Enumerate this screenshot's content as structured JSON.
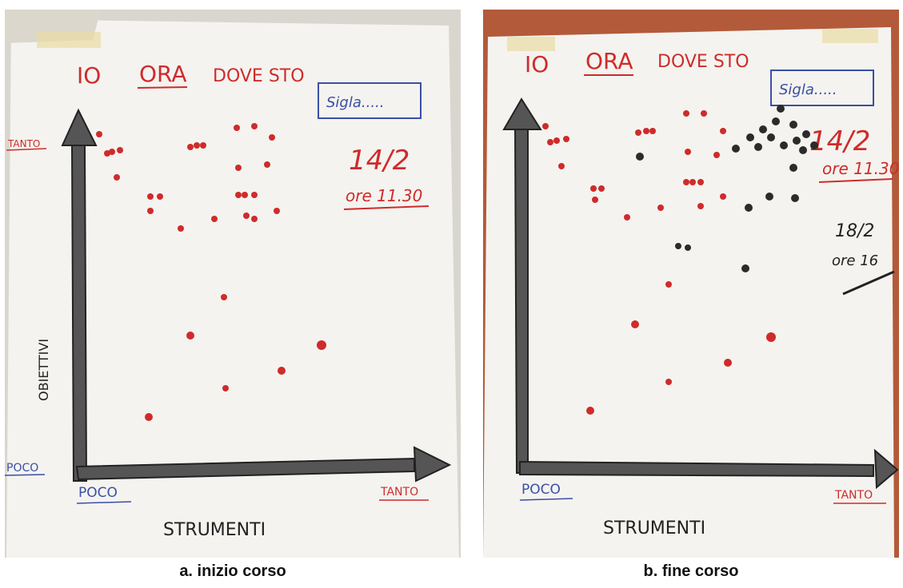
{
  "colors": {
    "ink_red": "#cf2b2b",
    "ink_blue": "#3a4fa6",
    "ink_black": "#2b2b2b",
    "paper": "#f4f3ef",
    "tape": "#e9dca4",
    "backdrop_a": "#d9d6cf",
    "backdrop_b": "#b35a3a"
  },
  "panels": [
    {
      "caption": "a. inizio corso",
      "sheet": {
        "title_io": "IO",
        "title_ora": "ORA",
        "title_rest": "DOVE STO",
        "signature_box": "Sigla.....",
        "date_1": "14/2",
        "time_1": "ore 11.30",
        "y_axis_label": "OBIETTIVI",
        "x_axis_label": "STRUMENTI",
        "y_high": "TANTO",
        "y_low": "POCO",
        "x_low": "POCO",
        "x_high": "TANTO"
      }
    },
    {
      "caption": "b. fine corso",
      "sheet": {
        "title_io": "IO",
        "title_ora": "ORA",
        "title_rest": "DOVE STO",
        "signature_box": "Sigla.....",
        "date_1": "14/2",
        "time_1": "ore 11.30",
        "date_2": "18/2",
        "time_2": "ore 16",
        "x_axis_label": "STRUMENTI",
        "x_low": "POCO",
        "x_high": "TANTO"
      }
    }
  ]
}
